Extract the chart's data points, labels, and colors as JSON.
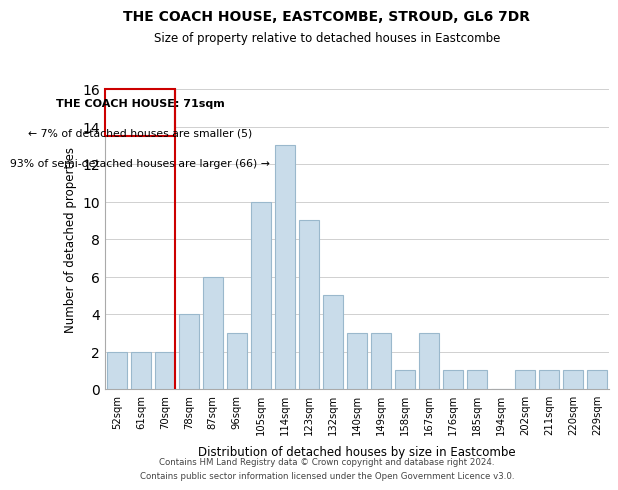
{
  "title": "THE COACH HOUSE, EASTCOMBE, STROUD, GL6 7DR",
  "subtitle": "Size of property relative to detached houses in Eastcombe",
  "xlabel": "Distribution of detached houses by size in Eastcombe",
  "ylabel": "Number of detached properties",
  "bin_labels": [
    "52sqm",
    "61sqm",
    "70sqm",
    "78sqm",
    "87sqm",
    "96sqm",
    "105sqm",
    "114sqm",
    "123sqm",
    "132sqm",
    "140sqm",
    "149sqm",
    "158sqm",
    "167sqm",
    "176sqm",
    "185sqm",
    "194sqm",
    "202sqm",
    "211sqm",
    "220sqm",
    "229sqm"
  ],
  "bar_heights": [
    2,
    2,
    2,
    4,
    6,
    3,
    10,
    13,
    9,
    5,
    3,
    3,
    1,
    3,
    1,
    1,
    0,
    1,
    1,
    1,
    1
  ],
  "bar_color": "#c9dcea",
  "bar_edge_color": "#9ab8cc",
  "red_line_bar_index": 2,
  "red_color": "#cc0000",
  "ylim": [
    0,
    16
  ],
  "yticks": [
    0,
    2,
    4,
    6,
    8,
    10,
    12,
    14,
    16
  ],
  "annotation_title": "THE COACH HOUSE: 71sqm",
  "annotation_line1": "← 7% of detached houses are smaller (5)",
  "annotation_line2": "93% of semi-detached houses are larger (66) →",
  "footer1": "Contains HM Land Registry data © Crown copyright and database right 2024.",
  "footer2": "Contains public sector information licensed under the Open Government Licence v3.0.",
  "bg_color": "#ffffff",
  "grid_color": "#d0d0d0"
}
